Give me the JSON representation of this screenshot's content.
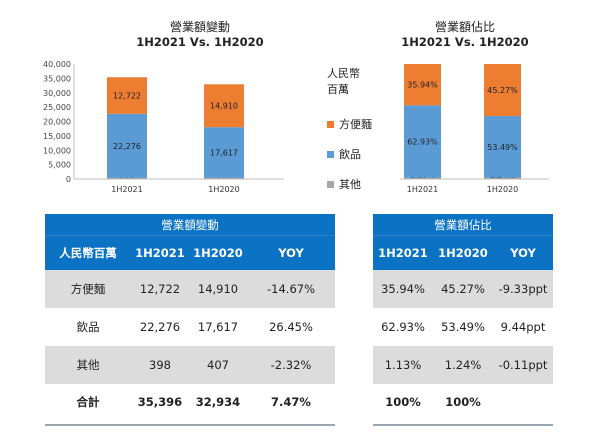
{
  "chart_data": [
    {
      "type": "bar",
      "stacked": true,
      "title": "營業額變動",
      "subtitle": "1H2021 Vs. 1H2020",
      "categories": [
        "1H2021",
        "1H2020"
      ],
      "ylim": [
        0,
        40000
      ],
      "yticks": [
        0,
        5000,
        10000,
        15000,
        20000,
        25000,
        30000,
        35000,
        40000
      ],
      "ytick_labels": [
        "0",
        "5,000",
        "10,000",
        "15,000",
        "20,000",
        "25,000",
        "30,000",
        "35,000",
        "40,000"
      ],
      "series": [
        {
          "name": "其他",
          "color": "#a6a6a6",
          "values": [
            398,
            407
          ],
          "labels": [
            "398",
            "407"
          ]
        },
        {
          "name": "飲品",
          "color": "#5b9bd5",
          "values": [
            22276,
            17617
          ],
          "labels": [
            "22,276",
            "17,617"
          ]
        },
        {
          "name": "方便麵",
          "color": "#ed7d31",
          "values": [
            12722,
            14910
          ],
          "labels": [
            "12,722",
            "14,910"
          ]
        }
      ],
      "grid": false,
      "legend": "right"
    },
    {
      "type": "bar",
      "stacked": true,
      "percent": true,
      "title": "營業額佔比",
      "subtitle": "1H2021 Vs. 1H2020",
      "categories": [
        "1H2021",
        "1H2020"
      ],
      "ylim": [
        0,
        100
      ],
      "series": [
        {
          "name": "其他",
          "color": "#a6a6a6",
          "values": [
            1.13,
            1.24
          ],
          "labels": [
            "1.13%",
            "1.24%"
          ]
        },
        {
          "name": "飲品",
          "color": "#5b9bd5",
          "values": [
            62.93,
            53.49
          ],
          "labels": [
            "62.93%",
            "53.49%"
          ]
        },
        {
          "name": "方便麵",
          "color": "#ed7d31",
          "values": [
            35.94,
            45.27
          ],
          "labels": [
            "35.94%",
            "45.27%"
          ]
        }
      ],
      "grid": false
    }
  ],
  "legend": {
    "unit": "人民幣\n百萬",
    "items": [
      {
        "label": "方便麵",
        "color": "#ed7d31"
      },
      {
        "label": "飲品",
        "color": "#5b9bd5"
      },
      {
        "label": "其他",
        "color": "#a6a6a6"
      }
    ]
  },
  "table_left": {
    "title": "營業額變動",
    "headers": [
      "人民幣百萬",
      "1H2021",
      "1H2020",
      "YOY"
    ],
    "rows": [
      [
        "方便麵",
        "12,722",
        "14,910",
        "-14.67%"
      ],
      [
        "飲品",
        "22,276",
        "17,617",
        "26.45%"
      ],
      [
        "其他",
        "398",
        "407",
        "-2.32%"
      ],
      [
        "合計",
        "35,396",
        "32,934",
        "7.47%"
      ]
    ]
  },
  "table_right": {
    "title": "營業額佔比",
    "headers": [
      "1H2021",
      "1H2020",
      "YOY"
    ],
    "rows": [
      [
        "35.94%",
        "45.27%",
        "-9.33ppt"
      ],
      [
        "62.93%",
        "53.49%",
        "9.44ppt"
      ],
      [
        "1.13%",
        "1.24%",
        "-0.11ppt"
      ],
      [
        "100%",
        "100%",
        ""
      ]
    ]
  }
}
